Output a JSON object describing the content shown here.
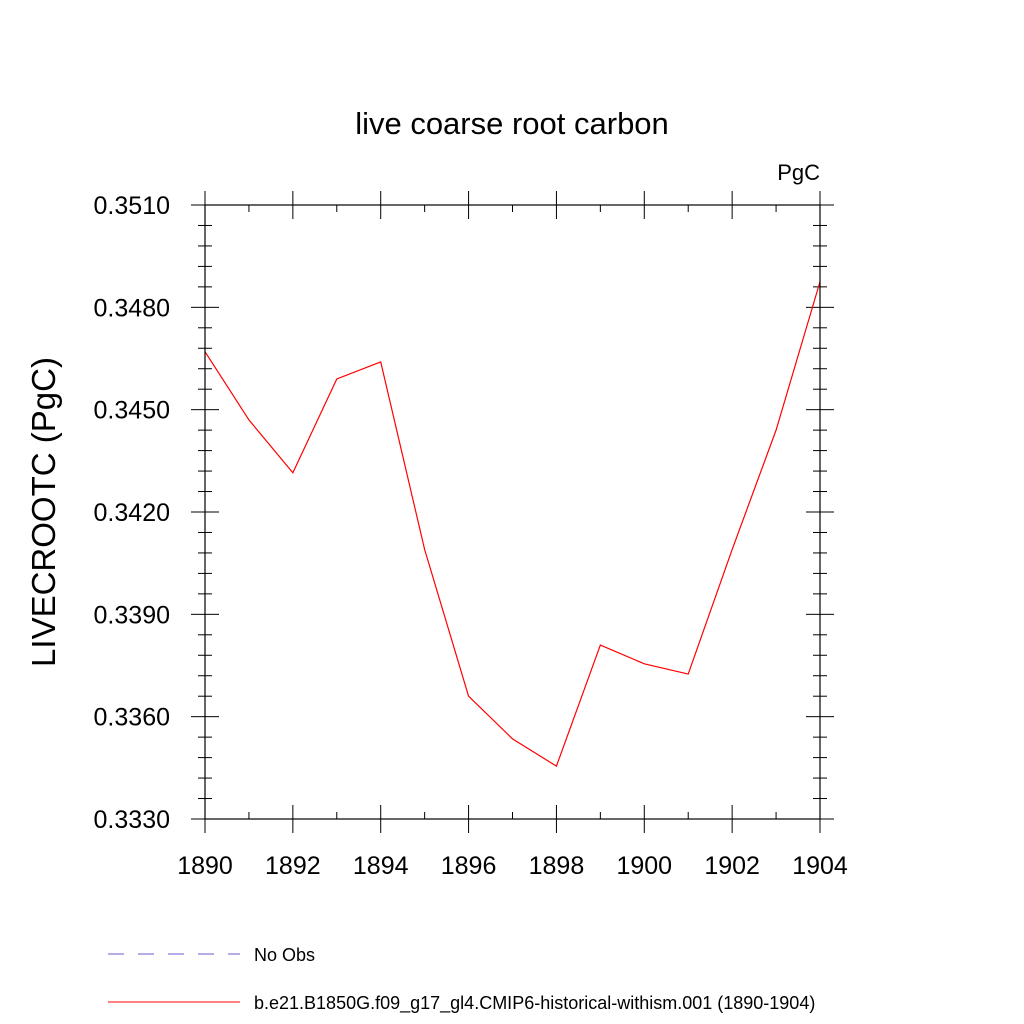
{
  "chart_data": {
    "type": "line",
    "title": "live coarse root carbon",
    "units_label": "PgC",
    "xlabel": "",
    "ylabel": "LIVECROOTC  (PgC)",
    "xlim": [
      1890,
      1904
    ],
    "ylim": [
      0.333,
      0.351
    ],
    "x_ticks": [
      "1890",
      "1892",
      "1894",
      "1896",
      "1898",
      "1900",
      "1902",
      "1904"
    ],
    "y_ticks": [
      "0.3330",
      "0.3360",
      "0.3390",
      "0.3420",
      "0.3450",
      "0.3480",
      "0.3510"
    ],
    "grid": false,
    "legend_position": "bottom",
    "series": [
      {
        "name": "b.e21.B1850G.f09_g17_gl4.CMIP6-historical-withism.001 (1890-1904)",
        "color": "#ff0000",
        "style": "solid",
        "x": [
          1890,
          1891,
          1892,
          1893,
          1894,
          1895,
          1896,
          1897,
          1898,
          1899,
          1900,
          1901,
          1902,
          1903,
          1904
        ],
        "y": [
          0.3467,
          0.3447,
          0.34315,
          0.3459,
          0.3464,
          0.3409,
          0.3366,
          0.33535,
          0.33455,
          0.3381,
          0.33755,
          0.33725,
          0.3409,
          0.3444,
          0.34875
        ]
      }
    ],
    "legend": [
      {
        "name": "No Obs",
        "color": "#6a5acd",
        "style": "dashed"
      },
      {
        "name": "b.e21.B1850G.f09_g17_gl4.CMIP6-historical-withism.001 (1890-1904)",
        "color": "#ff0000",
        "style": "solid"
      }
    ]
  }
}
